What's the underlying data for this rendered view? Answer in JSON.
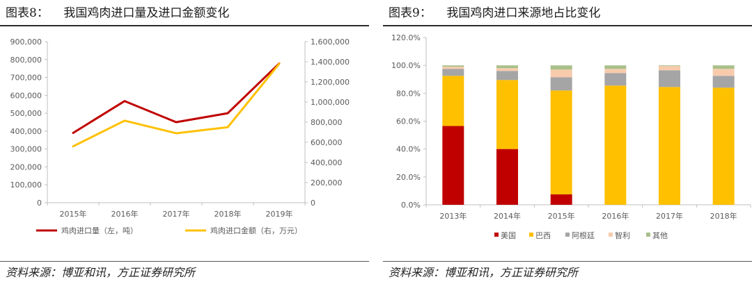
{
  "panels": [
    {
      "title": "图表8：    我国鸡肉进口量及进口金额变化",
      "source": "资料来源：博亚和讯，方正证券研究所",
      "chart_data": {
        "type": "line",
        "categories": [
          "2015年",
          "2016年",
          "2017年",
          "2018年",
          "2019年"
        ],
        "series": [
          {
            "name": "鸡肉进口量（左，吨）",
            "axis": "left",
            "color": "#c00000",
            "values": [
              390000,
              568000,
              450000,
              500000,
              778000
            ]
          },
          {
            "name": "鸡肉进口金额（右，万元）",
            "axis": "right",
            "color": "#ffc000",
            "values": [
              560000,
              815000,
              690000,
              750000,
              1380000
            ]
          }
        ],
        "y_left": {
          "ylim": [
            0,
            900000
          ],
          "ticks": [
            0,
            100000,
            200000,
            300000,
            400000,
            500000,
            600000,
            700000,
            800000,
            900000
          ],
          "tick_labels": [
            "0",
            "100,000",
            "200,000",
            "300,000",
            "400,000",
            "500,000",
            "600,000",
            "700,000",
            "800,000",
            "900,000"
          ]
        },
        "y_right": {
          "ylim": [
            0,
            1600000
          ],
          "ticks": [
            0,
            200000,
            400000,
            600000,
            800000,
            1000000,
            1200000,
            1400000,
            1600000
          ],
          "tick_labels": [
            "0",
            "200,000",
            "400,000",
            "600,000",
            "800,000",
            "1,000,000",
            "1,200,000",
            "1,400,000",
            "1,600,000"
          ]
        },
        "legend_position": "bottom",
        "grid": false
      }
    },
    {
      "title": "图表9：    我国鸡肉进口来源地占比变化",
      "source": "资料来源：博亚和讯，方正证券研究所",
      "chart_data": {
        "type": "bar",
        "stacked": true,
        "categories": [
          "2013年",
          "2014年",
          "2015年",
          "2016年",
          "2017年",
          "2018年"
        ],
        "series": [
          {
            "name": "美国",
            "color": "#c00000",
            "values": [
              56.5,
              40.0,
              7.5,
              0,
              0,
              0
            ]
          },
          {
            "name": "巴西",
            "color": "#ffc000",
            "values": [
              36.0,
              49.5,
              74.5,
              85.5,
              84.5,
              84.0
            ]
          },
          {
            "name": "阿根廷",
            "color": "#a5a5a5",
            "values": [
              5.0,
              6.5,
              9.5,
              9.0,
              12.0,
              8.5
            ]
          },
          {
            "name": "智利",
            "color": "#f8cbad",
            "values": [
              1.5,
              2.0,
              5.5,
              3.0,
              3.0,
              5.0
            ]
          },
          {
            "name": "其他",
            "color": "#a9c08a",
            "values": [
              1.0,
              2.0,
              3.0,
              2.5,
              0.5,
              2.5
            ]
          }
        ],
        "ylim": [
          0,
          120
        ],
        "ticks": [
          0,
          20,
          40,
          60,
          80,
          100,
          120
        ],
        "tick_labels": [
          "0.0%",
          "20.0%",
          "40.0%",
          "60.0%",
          "80.0%",
          "100.0%",
          "120.0%"
        ],
        "legend_position": "bottom",
        "grid": false
      }
    }
  ]
}
